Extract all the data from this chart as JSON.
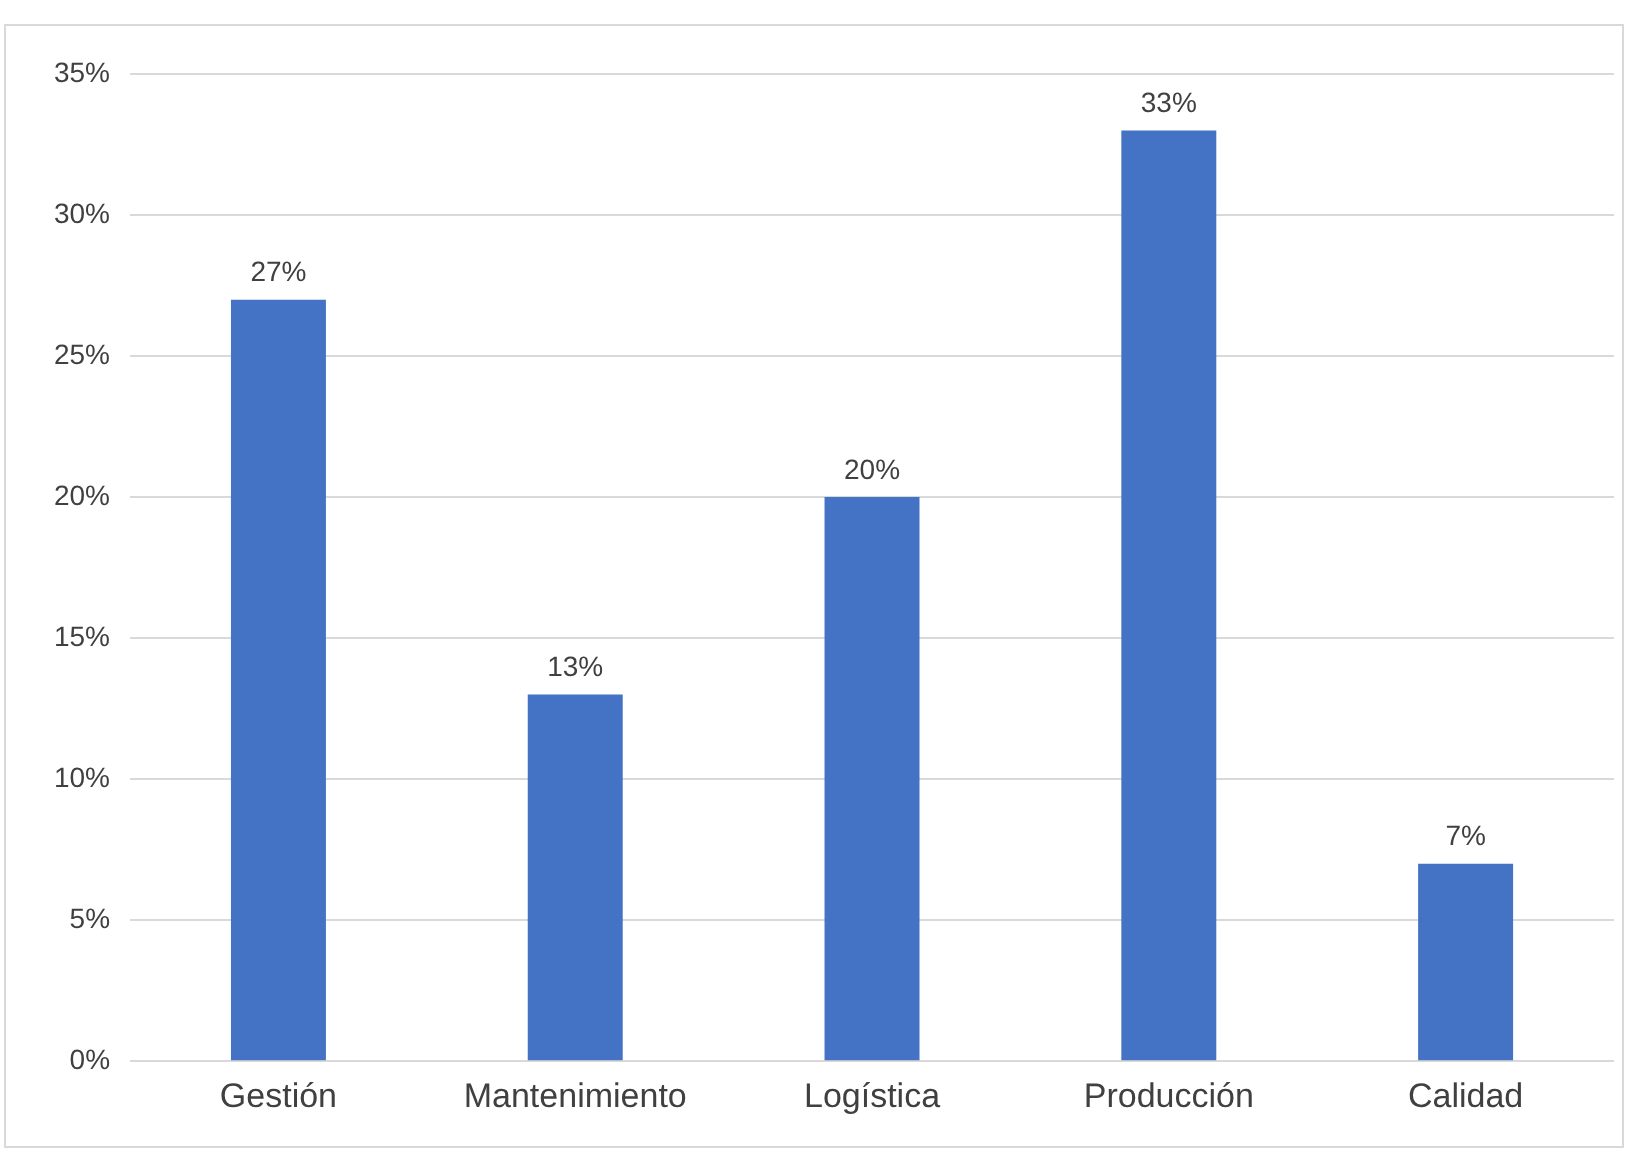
{
  "chart_data": {
    "type": "bar",
    "categories": [
      "Gestión",
      "Mantenimiento",
      "Logística",
      "Producción",
      "Calidad"
    ],
    "values": [
      27,
      13,
      20,
      33,
      7
    ],
    "value_labels": [
      "27%",
      "13%",
      "20%",
      "33%",
      "7%"
    ],
    "color": "#4472c4",
    "ylim": [
      0,
      35
    ],
    "yticks": [
      {
        "value": 0,
        "label": "0%"
      },
      {
        "value": 5,
        "label": "5%"
      },
      {
        "value": 10,
        "label": "10%"
      },
      {
        "value": 15,
        "label": "15%"
      },
      {
        "value": 20,
        "label": "20%"
      },
      {
        "value": 25,
        "label": "25%"
      },
      {
        "value": 30,
        "label": "30%"
      },
      {
        "value": 35,
        "label": "35%"
      }
    ],
    "grid": "y",
    "legend": false
  }
}
